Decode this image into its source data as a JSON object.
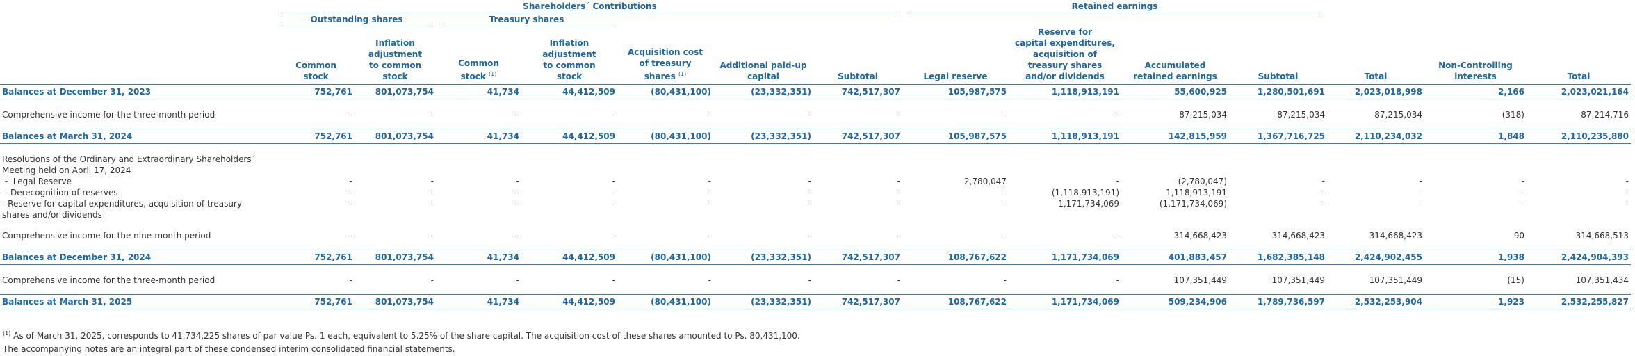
{
  "groups": [
    {
      "text": "Shareholders´ Contributions",
      "start": 1,
      "span": 7
    },
    {
      "text": "Retained earnings",
      "start": 8,
      "span": 4
    }
  ],
  "subgroups": [
    {
      "text": "Outstanding shares",
      "start": 1,
      "span": 2
    },
    {
      "text": "Treasury shares",
      "start": 3,
      "span": 2
    }
  ],
  "columns": [
    {
      "lines": [
        "Common",
        "stock"
      ]
    },
    {
      "lines": [
        "Inflation",
        "adjustment",
        "to common",
        "stock"
      ]
    },
    {
      "lines": [
        "Common",
        "stock"
      ],
      "note": "(1)"
    },
    {
      "lines": [
        "Inflation",
        "adjustment",
        "to common",
        "stock"
      ]
    },
    {
      "lines": [
        "Acquisition cost",
        "of treasury",
        "shares"
      ],
      "note": "(1)"
    },
    {
      "lines": [
        "Additional paid-up",
        "capital"
      ]
    },
    {
      "lines": [
        "Subtotal"
      ]
    },
    {
      "lines": [
        "Legal reserve"
      ]
    },
    {
      "lines": [
        "Reserve for",
        "capital expenditures,",
        "acquisition of",
        "treasury shares",
        "and/or dividends"
      ]
    },
    {
      "lines": [
        "Accumulated",
        "retained earnings"
      ]
    },
    {
      "lines": [
        "Subtotal"
      ]
    },
    {
      "lines": [
        "Total"
      ]
    },
    {
      "lines": [
        "Non-Controlling",
        "interests"
      ]
    },
    {
      "lines": [
        "Total"
      ]
    }
  ],
  "rows": [
    {
      "kind": "balance",
      "label": "Balances at December 31, 2023",
      "values": [
        "752,761",
        "801,073,754",
        "41,734",
        "44,412,509",
        "(80,431,100)",
        "(23,332,351)",
        "742,517,307",
        "105,987,575",
        "1,118,913,191",
        "55,600,925",
        "1,280,501,691",
        "2,023,018,998",
        "2,166",
        "2,023,021,164"
      ]
    },
    {
      "label": "Comprehensive income for the three-month period",
      "values": [
        "-",
        "-",
        "-",
        "-",
        "-",
        "-",
        "-",
        "-",
        "-",
        "87,215,034",
        "87,215,034",
        "87,215,034",
        "(318)",
        "87,214,716"
      ]
    },
    {
      "kind": "balance",
      "label": "Balances at March 31, 2024",
      "values": [
        "752,761",
        "801,073,754",
        "41,734",
        "44,412,509",
        "(80,431,100)",
        "(23,332,351)",
        "742,517,307",
        "105,987,575",
        "1,118,913,191",
        "142,815,959",
        "1,367,716,725",
        "2,110,234,032",
        "1,848",
        "2,110,235,880"
      ]
    },
    {
      "label": [
        "Resolutions of the Ordinary and Extraordinary Shareholders´",
        "Meeting held on April 17, 2024"
      ]
    },
    {
      "label": " -  Legal Reserve",
      "values": [
        "-",
        "-",
        "-",
        "-",
        "-",
        "-",
        "-",
        "2,780,047",
        "-",
        "(2,780,047)",
        "-",
        "-",
        "-",
        "-"
      ]
    },
    {
      "label": " - Derecognition of reserves",
      "values": [
        "-",
        "-",
        "-",
        "-",
        "-",
        "-",
        "-",
        "-",
        "(1,118,913,191)",
        "1,118,913,191",
        "-",
        "-",
        "-",
        "-"
      ]
    },
    {
      "label": [
        " - Reserve for capital expenditures, acquisition of treasury",
        "shares and/or dividends"
      ],
      "values": [
        "-",
        "-",
        "-",
        "-",
        "-",
        "-",
        "-",
        "-",
        "1,171,734,069",
        "(1,171,734,069)",
        "-",
        "-",
        "-",
        "-"
      ]
    },
    {
      "label": "Comprehensive income for the nine-month period",
      "values": [
        "-",
        "-",
        "-",
        "-",
        "-",
        "-",
        "-",
        "-",
        "-",
        "314,668,423",
        "314,668,423",
        "314,668,423",
        "90",
        "314,668,513"
      ]
    },
    {
      "kind": "balance",
      "label": "Balances at December 31, 2024",
      "values": [
        "752,761",
        "801,073,754",
        "41,734",
        "44,412,509",
        "(80,431,100)",
        "(23,332,351)",
        "742,517,307",
        "108,767,622",
        "1,171,734,069",
        "401,883,457",
        "1,682,385,148",
        "2,424,902,455",
        "1,938",
        "2,424,904,393"
      ]
    },
    {
      "label": "Comprehensive income for the three-month period",
      "values": [
        "-",
        "-",
        "-",
        "-",
        "-",
        "-",
        "-",
        "-",
        "-",
        "107,351,449",
        "107,351,449",
        "107,351,449",
        "(15)",
        "107,351,434"
      ]
    },
    {
      "kind": "balance",
      "label": "Balances at March 31, 2025",
      "values": [
        "752,761",
        "801,073,754",
        "41,734",
        "44,412,509",
        "(80,431,100)",
        "(23,332,351)",
        "742,517,307",
        "108,767,622",
        "1,171,734,069",
        "509,234,906",
        "1,789,736,597",
        "2,532,253,904",
        "1,923",
        "2,532,255,827"
      ]
    }
  ],
  "footnotes": [
    {
      "marker": "(1)",
      "text": "As of March 31, 2025, corresponds to 41,734,225 shares of par value Ps. 1 each, equivalent to 5.25% of the share capital. The acquisition cost of these shares amounted to Ps. 80,431,100."
    },
    {
      "text": "The accompanying notes are an integral part of these condensed interim consolidated financial statements."
    }
  ]
}
